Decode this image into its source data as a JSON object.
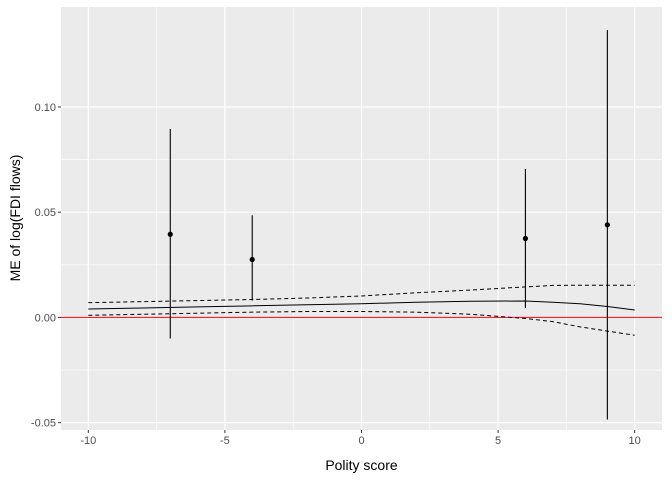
{
  "chart_data": {
    "type": "line",
    "title": "",
    "xlabel": "Polity score",
    "ylabel": "ME of log(FDI flows)",
    "xlim": [
      -11,
      11
    ],
    "ylim": [
      -0.0535,
      0.1475
    ],
    "x_ticks": [
      -10,
      -5,
      0,
      5,
      10
    ],
    "x_tick_labels": [
      "-10",
      "-5",
      "0",
      "5",
      "10"
    ],
    "y_ticks": [
      -0.05,
      0.0,
      0.05,
      0.1
    ],
    "y_tick_labels": [
      "-0.05",
      "0.00",
      "0.05",
      "0.10"
    ],
    "grid": true,
    "panel_background": "#ebebeb",
    "grid_color": "#ffffff",
    "reference_line": {
      "y": 0,
      "color": "#ff0000"
    },
    "series": [
      {
        "kind": "line",
        "style": "solid",
        "x": [
          -10,
          -8,
          -6,
          -4,
          -2,
          0,
          2,
          4,
          6,
          7,
          8,
          9,
          10
        ],
        "y": [
          0.004,
          0.0045,
          0.005,
          0.0055,
          0.006,
          0.0065,
          0.0072,
          0.0077,
          0.0078,
          0.0072,
          0.0065,
          0.0052,
          0.0035
        ]
      },
      {
        "kind": "line",
        "style": "dashed",
        "x": [
          -10,
          -8,
          -6,
          -4,
          -2,
          0,
          2,
          4,
          6,
          7,
          8,
          9,
          10
        ],
        "y": [
          0.007,
          0.0075,
          0.008,
          0.0085,
          0.0092,
          0.0102,
          0.0117,
          0.013,
          0.0145,
          0.0152,
          0.0153,
          0.0153,
          0.0153
        ]
      },
      {
        "kind": "line",
        "style": "dashed",
        "x": [
          -10,
          -8,
          -6,
          -4,
          -2,
          0,
          2,
          4,
          6,
          7,
          8,
          9,
          10
        ],
        "y": [
          0.001,
          0.0015,
          0.002,
          0.0025,
          0.0028,
          0.0028,
          0.0025,
          0.0015,
          -0.0005,
          -0.002,
          -0.0045,
          -0.0065,
          -0.0085
        ]
      },
      {
        "kind": "pointrange",
        "x": [
          -7,
          -4,
          6,
          9
        ],
        "y": [
          0.0395,
          0.0275,
          0.0375,
          0.044
        ],
        "ymin": [
          -0.01,
          0.008,
          0.0045,
          -0.0485
        ],
        "ymax": [
          0.0895,
          0.0485,
          0.0705,
          0.1365
        ]
      }
    ]
  }
}
